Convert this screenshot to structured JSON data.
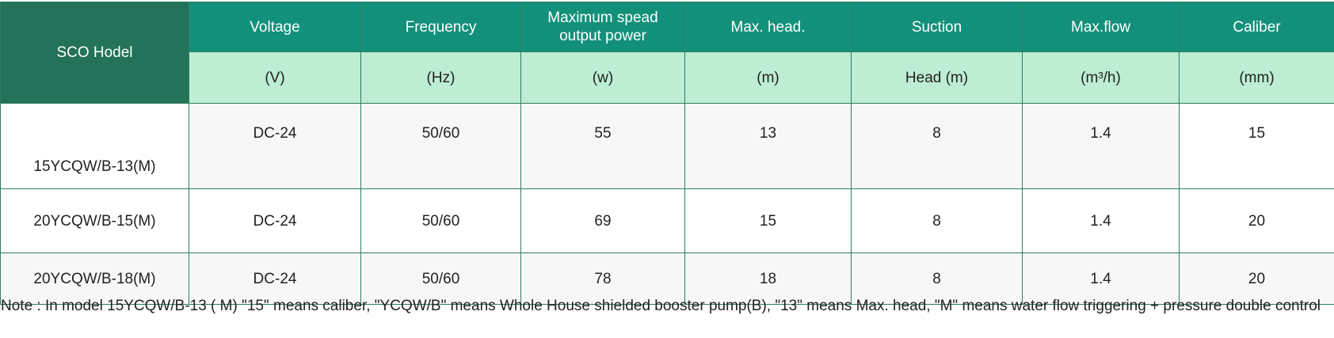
{
  "table": {
    "corner_header": "SCO Hodel",
    "headers": [
      "Voltage",
      "Frequency",
      "Maximum spead output power",
      "Max. head.",
      "Suction",
      "Max.flow",
      "Caliber"
    ],
    "units": [
      "(V)",
      "(Hz)",
      "(w)",
      "(m)",
      "Head (m)",
      "(m³/h)",
      "(mm)"
    ],
    "rows": [
      [
        "15YCQW/B-13(M)",
        "DC-24",
        "50/60",
        "55",
        "13",
        "8",
        "1.4",
        "15"
      ],
      [
        "20YCQW/B-15(M)",
        "DC-24",
        "50/60",
        "69",
        "15",
        "8",
        "1.4",
        "20"
      ],
      [
        "20YCQW/B-18(M)",
        "DC-24",
        "50/60",
        "78",
        "18",
        "8",
        "1.4",
        "20"
      ]
    ]
  },
  "note": "Note : In model 15YCQW/B-13 ( M) \"15\" means caliber, \"YCQW/B\" means Whole House shielded booster pump(B), \"13\" means Max. head, \"M\" means water flow triggering + pressure double control",
  "colors": {
    "corner_header": "#237259",
    "header": "#13907a",
    "unit_row": "#bdedd2",
    "cell": "#f7f7f7",
    "border": "#2f7d64"
  }
}
